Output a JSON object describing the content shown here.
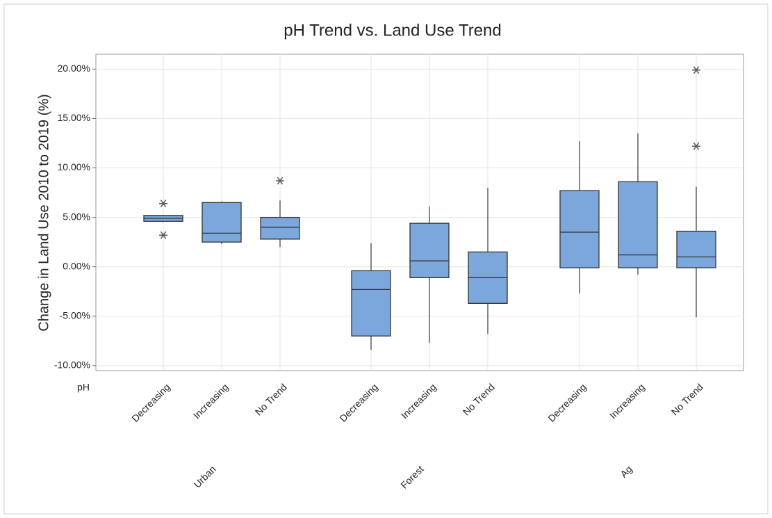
{
  "chart_data": {
    "type": "box",
    "title": "pH Trend vs. Land Use Trend",
    "ylabel": "Change in Land Use 2010 to 2019 (%)",
    "xlabel": "pH",
    "color": "#7ba7dc",
    "grid": true,
    "ylim": [
      -10.5,
      21.5
    ],
    "yticks": [
      {
        "value": -10,
        "label": "-10.00%"
      },
      {
        "value": -5,
        "label": "-5.00%"
      },
      {
        "value": 0,
        "label": "0.00%"
      },
      {
        "value": 5,
        "label": "5.00%"
      },
      {
        "value": 10,
        "label": "10.00%"
      },
      {
        "value": 15,
        "label": "15.00%"
      },
      {
        "value": 20,
        "label": "20.00%"
      }
    ],
    "groups": [
      {
        "name": "Urban",
        "boxes": [
          {
            "label": "Decreasing",
            "min": 4.5,
            "q1": 4.6,
            "median": 4.9,
            "q3": 5.2,
            "max": 5.2,
            "outliers": [
              6.4,
              3.2
            ]
          },
          {
            "label": "Increasing",
            "min": 2.3,
            "q1": 2.5,
            "median": 3.4,
            "q3": 6.5,
            "max": 6.6,
            "outliers": []
          },
          {
            "label": "No Trend",
            "min": 2.0,
            "q1": 2.8,
            "median": 4.0,
            "q3": 5.0,
            "max": 6.7,
            "outliers": [
              8.7
            ]
          }
        ]
      },
      {
        "name": "Forest",
        "boxes": [
          {
            "label": "Decreasing",
            "min": -8.4,
            "q1": -7.0,
            "median": -2.3,
            "q3": -0.4,
            "max": 2.4,
            "outliers": []
          },
          {
            "label": "Increasing",
            "min": -7.7,
            "q1": -1.1,
            "median": 0.6,
            "q3": 4.4,
            "max": 6.1,
            "outliers": []
          },
          {
            "label": "No Trend",
            "min": -6.8,
            "q1": -3.7,
            "median": -1.1,
            "q3": 1.5,
            "max": 8.0,
            "outliers": []
          }
        ]
      },
      {
        "name": "Ag",
        "boxes": [
          {
            "label": "Decreasing",
            "min": -2.7,
            "q1": -0.1,
            "median": 3.5,
            "q3": 7.7,
            "max": 12.7,
            "outliers": []
          },
          {
            "label": "Increasing",
            "min": -0.8,
            "q1": -0.1,
            "median": 1.2,
            "q3": 8.6,
            "max": 13.5,
            "outliers": []
          },
          {
            "label": "No Trend",
            "min": -5.1,
            "q1": -0.1,
            "median": 1.0,
            "q3": 3.6,
            "max": 8.1,
            "outliers": [
              19.9,
              12.2
            ]
          }
        ]
      }
    ]
  }
}
